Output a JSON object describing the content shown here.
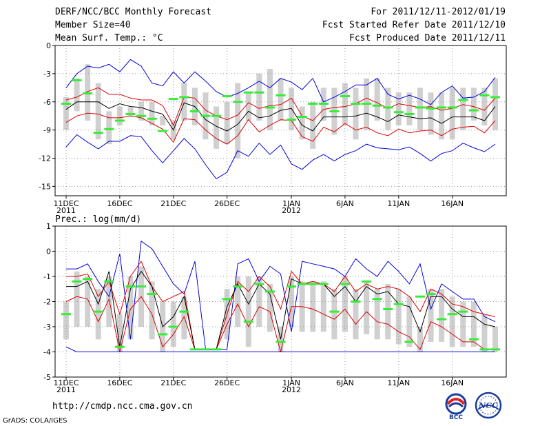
{
  "header": {
    "title": "DERF/NCC/BCC Monthly Forecast",
    "member_size": "Member Size=40",
    "variable": "Mean Surf. Temp.: °C",
    "forecast_period": "For 2011/12/11-2012/01/19",
    "start_date": "Fcst Started Refer Date 2011/12/10",
    "produced_date": "Fcst Produced Date 2011/12/11"
  },
  "footer": {
    "url": "http://cmdp.ncc.cma.gov.cn",
    "grads_credit": "GrADS: COLA/IGES"
  },
  "logos": {
    "bcc": "BCC",
    "ncc": "NCC"
  },
  "colors": {
    "ensemble_mean": "#000000",
    "spread": "#dd0000",
    "extreme": "#0000dd",
    "box": "#d0d0d0",
    "median": "#33ee33",
    "grid": "#999999"
  },
  "chart_data": [
    {
      "type": "line",
      "title": "Mean Surf. Temp.: °C",
      "x_days": 40,
      "x_ticks": [
        {
          "day": 0,
          "label": "11DEC",
          "sub": "2011"
        },
        {
          "day": 5,
          "label": "16DEC",
          "sub": ""
        },
        {
          "day": 10,
          "label": "21DEC",
          "sub": ""
        },
        {
          "day": 15,
          "label": "26DEC",
          "sub": ""
        },
        {
          "day": 21,
          "label": "1JAN",
          "sub": "2012"
        },
        {
          "day": 26,
          "label": "6JAN",
          "sub": ""
        },
        {
          "day": 31,
          "label": "11JAN",
          "sub": ""
        },
        {
          "day": 36,
          "label": "16JAN",
          "sub": ""
        }
      ],
      "ylim": [
        -16,
        0
      ],
      "y_ticks": [
        0,
        -3,
        -6,
        -9,
        -12,
        -15
      ],
      "series": {
        "max": [
          -4.5,
          -3.0,
          -2.2,
          -2.4,
          -2.0,
          -2.8,
          -1.5,
          -2.2,
          -4.0,
          -4.3,
          -2.8,
          -4.0,
          -2.8,
          -3.8,
          -4.9,
          -5.5,
          -5.1,
          -4.5,
          -3.8,
          -4.5,
          -3.5,
          -3.9,
          -4.7,
          -3.5,
          -6.0,
          -5.5,
          -4.9,
          -4.2,
          -4.2,
          -3.5,
          -5.2,
          -5.7,
          -5.3,
          -5.7,
          -6.3,
          -5.0,
          -4.3,
          -5.6,
          -5.5,
          -4.9,
          -3.4
        ],
        "p_hi": [
          -5.8,
          -5.5,
          -4.9,
          -4.5,
          -5.2,
          -5.2,
          -5.6,
          -5.8,
          -5.8,
          -6.4,
          -8.5,
          -5.5,
          -5.6,
          -6.9,
          -7.5,
          -7.9,
          -7.4,
          -6.1,
          -6.7,
          -6.4,
          -6.3,
          -5.6,
          -7.5,
          -8.0,
          -6.8,
          -6.6,
          -6.5,
          -6.2,
          -5.6,
          -6.1,
          -6.7,
          -6.2,
          -6.4,
          -6.6,
          -6.5,
          -6.9,
          -6.7,
          -6.3,
          -6.5,
          -6.9,
          -5.6
        ],
        "mean": [
          -6.8,
          -6.0,
          -6.0,
          -6.0,
          -6.7,
          -6.2,
          -6.5,
          -6.6,
          -7.0,
          -7.3,
          -9.0,
          -6.1,
          -6.5,
          -7.9,
          -8.6,
          -9.1,
          -8.4,
          -7.0,
          -7.7,
          -7.5,
          -6.9,
          -6.7,
          -8.5,
          -9.1,
          -7.6,
          -7.6,
          -7.6,
          -7.5,
          -7.2,
          -7.6,
          -8.1,
          -7.4,
          -7.6,
          -7.8,
          -7.7,
          -8.3,
          -7.6,
          -7.6,
          -7.6,
          -8.0,
          -6.5
        ],
        "p_lo": [
          -8.2,
          -7.5,
          -7.2,
          -7.3,
          -7.7,
          -7.7,
          -7.5,
          -7.7,
          -8.3,
          -8.9,
          -10.3,
          -7.8,
          -7.9,
          -9.0,
          -9.9,
          -10.5,
          -9.6,
          -7.9,
          -9.2,
          -8.5,
          -7.9,
          -8.0,
          -9.7,
          -10.2,
          -8.7,
          -9.2,
          -8.3,
          -9.0,
          -8.7,
          -9.3,
          -9.6,
          -8.9,
          -9.3,
          -9.1,
          -9.0,
          -9.6,
          -8.9,
          -8.7,
          -8.6,
          -9.3,
          -8.0
        ],
        "min": [
          -10.8,
          -9.5,
          -10.3,
          -11.0,
          -10.2,
          -10.2,
          -9.6,
          -9.7,
          -11.2,
          -12.5,
          -11.2,
          -9.9,
          -11.0,
          -12.7,
          -14.2,
          -13.5,
          -11.2,
          -11.8,
          -10.4,
          -11.6,
          -10.6,
          -12.6,
          -13.2,
          -12.2,
          -11.6,
          -12.3,
          -11.6,
          -11.2,
          -10.5,
          -10.9,
          -11.0,
          -11.1,
          -10.8,
          -11.5,
          -12.3,
          -11.5,
          -11.2,
          -10.4,
          -10.9,
          -11.3,
          -10.5
        ],
        "box_hi": [
          -5.5,
          -3.5,
          -2.0,
          -4.0,
          -7.0,
          -6.5,
          -6.6,
          -6.0,
          -6.0,
          -7.5,
          -8.0,
          -4.0,
          -4.5,
          -5.0,
          -6.5,
          -6.0,
          -4.0,
          -5.0,
          -3.0,
          -2.5,
          -3.5,
          -4.5,
          -6.5,
          -6.0,
          -4.5,
          -4.5,
          -4.0,
          -4.5,
          -3.5,
          -3.5,
          -4.5,
          -5.0,
          -5.0,
          -4.5,
          -5.0,
          -5.0,
          -4.5,
          -4.5,
          -4.5,
          -4.5,
          -3.5
        ],
        "box_lo": [
          -9.0,
          -7.0,
          -8.0,
          -10.0,
          -10.5,
          -8.5,
          -7.5,
          -8.0,
          -8.5,
          -8.5,
          -10.0,
          -8.0,
          -8.5,
          -10.0,
          -11.0,
          -10.5,
          -12.0,
          -8.0,
          -8.0,
          -9.0,
          -8.0,
          -9.0,
          -10.0,
          -11.0,
          -8.0,
          -9.5,
          -8.5,
          -10.0,
          -9.0,
          -8.0,
          -9.0,
          -8.5,
          -8.5,
          -9.0,
          -9.5,
          -10.0,
          -10.0,
          -9.0,
          -8.0,
          -8.5,
          -9.0
        ],
        "median": [
          -6.2,
          -3.7,
          -5.1,
          -9.3,
          -8.9,
          -8.0,
          -7.3,
          -7.5,
          -7.8,
          -9.1,
          -5.7,
          -5.5,
          -7.0,
          -7.5,
          -7.5,
          -5.4,
          -6.0,
          -5.0,
          -5.0,
          -6.6,
          -5.3,
          -7.9,
          -7.6,
          -6.2,
          -6.2,
          -7.0,
          -5.4,
          -6.2,
          -6.2,
          -6.4,
          -6.6,
          -7.1,
          -7.3,
          -6.6,
          -6.7,
          -6.6,
          -6.6,
          -5.8,
          -6.9,
          -5.3,
          -5.5
        ]
      }
    },
    {
      "type": "line",
      "title": "Prec.: log(mm/d)",
      "x_days": 40,
      "x_ticks": [
        {
          "day": 0,
          "label": "11DEC",
          "sub": "2011"
        },
        {
          "day": 5,
          "label": "16DEC",
          "sub": ""
        },
        {
          "day": 10,
          "label": "21DEC",
          "sub": ""
        },
        {
          "day": 15,
          "label": "26DEC",
          "sub": ""
        },
        {
          "day": 21,
          "label": "1JAN",
          "sub": "2012"
        },
        {
          "day": 26,
          "label": "6JAN",
          "sub": ""
        },
        {
          "day": 31,
          "label": "11JAN",
          "sub": ""
        },
        {
          "day": 36,
          "label": "16JAN",
          "sub": ""
        }
      ],
      "ylim": [
        -5,
        1
      ],
      "y_ticks": [
        1,
        0,
        -1,
        -2,
        -3,
        -4,
        -5
      ],
      "series": {
        "max": [
          -0.7,
          -0.7,
          -0.5,
          -1.2,
          -1.8,
          -0.1,
          -3.5,
          0.4,
          0.1,
          -0.6,
          -1.3,
          -1.7,
          -0.4,
          -3.9,
          -3.9,
          -3.9,
          -0.5,
          -0.3,
          -1.2,
          -0.6,
          -0.9,
          -3.2,
          -0.4,
          -0.5,
          -0.6,
          -0.7,
          -1.0,
          -0.3,
          -0.7,
          -1.0,
          -0.4,
          -0.8,
          -1.3,
          -0.5,
          -2.3,
          -1.3,
          -1.6,
          -1.9,
          -1.9,
          -2.6,
          -2.8
        ],
        "p_hi": [
          -1.0,
          -1.0,
          -0.9,
          -1.8,
          -1.2,
          -2.5,
          -1.0,
          -0.4,
          -1.4,
          -2.0,
          -1.8,
          -1.6,
          -3.9,
          -3.9,
          -3.9,
          -2.5,
          -1.2,
          -1.6,
          -1.0,
          -1.4,
          -2.3,
          -0.8,
          -1.3,
          -1.2,
          -1.3,
          -1.6,
          -1.0,
          -1.6,
          -1.3,
          -1.5,
          -1.4,
          -1.5,
          -1.8,
          -2.4,
          -1.5,
          -1.7,
          -2.1,
          -2.2,
          -2.4,
          -2.5,
          -2.6
        ],
        "mean": [
          -1.4,
          -1.4,
          -1.2,
          -2.1,
          -0.8,
          -3.8,
          -1.5,
          -0.8,
          -1.4,
          -3.0,
          -2.6,
          -1.8,
          -3.9,
          -3.9,
          -3.9,
          -2.2,
          -1.3,
          -2.1,
          -1.3,
          -1.7,
          -3.5,
          -1.1,
          -1.3,
          -1.3,
          -1.3,
          -1.8,
          -1.4,
          -2.0,
          -1.4,
          -1.7,
          -1.6,
          -2.1,
          -2.2,
          -3.2,
          -1.8,
          -1.8,
          -2.3,
          -2.6,
          -2.6,
          -2.9,
          -3.0
        ],
        "p_lo": [
          -2.0,
          -1.8,
          -1.9,
          -2.8,
          -1.9,
          -4.0,
          -2.3,
          -1.8,
          -2.5,
          -3.8,
          -3.3,
          -2.6,
          -3.9,
          -3.9,
          -3.9,
          -2.9,
          -2.1,
          -3.0,
          -2.2,
          -2.4,
          -4.0,
          -2.2,
          -2.2,
          -2.3,
          -2.5,
          -2.7,
          -2.3,
          -2.9,
          -2.4,
          -2.8,
          -2.9,
          -3.2,
          -3.4,
          -3.9,
          -2.8,
          -3.0,
          -3.3,
          -3.6,
          -3.6,
          -3.9,
          -3.9
        ],
        "min": [
          -3.8,
          -4.0,
          -4.0,
          -4.0,
          -4.0,
          -4.0,
          -4.0,
          -4.0,
          -4.0,
          -4.0,
          -4.0,
          -4.0,
          -4.0,
          -4.0,
          -4.0,
          -4.0,
          -4.0,
          -4.0,
          -4.0,
          -4.0,
          -4.0,
          -4.0,
          -4.0,
          -4.0,
          -4.0,
          -4.0,
          -4.0,
          -4.0,
          -4.0,
          -4.0,
          -4.0,
          -4.0,
          -4.0,
          -4.0,
          -4.0,
          -4.0,
          -4.0,
          -4.0,
          -4.0,
          -4.0,
          -4.0
        ],
        "box_hi": [
          -2.0,
          -0.8,
          -1.0,
          -1.5,
          -1.0,
          -2.5,
          -1.0,
          -0.6,
          -1.2,
          -2.0,
          -2.0,
          -1.8,
          -3.9,
          -3.9,
          -3.9,
          -1.5,
          -1.0,
          -1.0,
          -1.0,
          -1.3,
          -3.0,
          -1.0,
          -1.2,
          -1.2,
          -1.2,
          -1.5,
          -1.0,
          -1.5,
          -1.2,
          -1.5,
          -1.3,
          -1.5,
          -1.8,
          -3.0,
          -1.5,
          -1.5,
          -1.8,
          -2.0,
          -2.0,
          -2.5,
          -3.0
        ],
        "box_lo": [
          -3.5,
          -3.0,
          -3.0,
          -3.5,
          -3.0,
          -4.0,
          -3.5,
          -3.0,
          -3.5,
          -4.0,
          -3.8,
          -3.5,
          -3.9,
          -3.9,
          -3.9,
          -3.5,
          -3.0,
          -3.8,
          -3.0,
          -3.2,
          -4.0,
          -3.0,
          -3.2,
          -3.2,
          -3.2,
          -3.5,
          -3.2,
          -3.5,
          -3.3,
          -3.5,
          -3.5,
          -3.7,
          -3.8,
          -4.0,
          -3.6,
          -3.6,
          -3.8,
          -3.8,
          -3.8,
          -4.0,
          -4.0
        ],
        "median": [
          -2.5,
          -1.2,
          -1.1,
          -2.4,
          -1.2,
          -3.8,
          -1.4,
          -1.4,
          -1.7,
          -3.3,
          -3.0,
          -2.4,
          -3.9,
          -3.9,
          -3.9,
          -1.9,
          -1.4,
          -2.8,
          -1.3,
          -1.6,
          -3.6,
          -1.4,
          -1.3,
          -1.3,
          -1.3,
          -2.4,
          -1.3,
          -2.0,
          -1.2,
          -1.9,
          -2.3,
          -2.1,
          -3.6,
          -1.8,
          -1.7,
          -2.7,
          -2.5,
          -2.4,
          -3.5,
          -3.9,
          -3.9
        ]
      }
    }
  ]
}
